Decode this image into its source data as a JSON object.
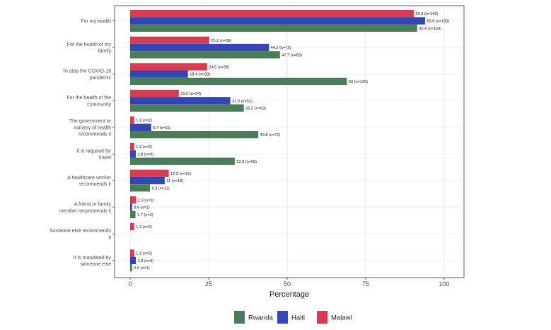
{
  "chart_data": {
    "type": "bar",
    "orientation": "horizontal",
    "title": "",
    "xlabel": "Percentage",
    "ylabel": "",
    "xlim": [
      0,
      100
    ],
    "xticks": [
      0,
      25,
      50,
      75,
      100
    ],
    "grid": true,
    "legend_position": "bottom",
    "categories": [
      [
        "For my health"
      ],
      [
        "For the health of my",
        "family"
      ],
      [
        "To stop the COVID-19",
        "pandemic"
      ],
      [
        "For the health of the",
        "community"
      ],
      [
        "The government or",
        "ministry of health",
        "recommends it"
      ],
      [
        "It is required for",
        "travel"
      ],
      [
        "A healthcare worker",
        "recommends it"
      ],
      [
        "A friend or family",
        "member recommends it"
      ],
      [
        "Someone else recommends",
        "it"
      ],
      [
        "It is mandated by",
        "someone else"
      ]
    ],
    "series": [
      {
        "name": "Rwanda",
        "color": "#4a7c59",
        "values": [
          91.4,
          47.7,
          69,
          36.2,
          40.8,
          33.3,
          6.3,
          1.7,
          null,
          0.6
        ],
        "labels": [
          "91.4 (n=159)",
          "47.7 (n=83)",
          "69 (n=120)",
          "36.2 (n=63)",
          "40.8 (n=71)",
          "33.3 (n=58)",
          "6.3 (n=11)",
          "1.7 (n=3)",
          null,
          "0.6 (n=1)"
        ]
      },
      {
        "name": "Haiti",
        "color": "#3446b4",
        "values": [
          93.9,
          44.2,
          18.4,
          31.9,
          6.7,
          1.8,
          11,
          0.6,
          null,
          1.8
        ],
        "labels": [
          "93.9 (n=153)",
          "44.2 (n=72)",
          "18.4 (n=30)",
          "31.9 (n=52)",
          "6.7 (n=11)",
          "1.8 (n=3)",
          "11 (n=18)",
          "0.6 (n=1)",
          null,
          "1.8 (n=3)"
        ]
      },
      {
        "name": "Malawi",
        "color": "#d63c52",
        "values": [
          90.3,
          25.2,
          24.5,
          15.5,
          1.3,
          1.3,
          12.3,
          1.9,
          1.3,
          1.3
        ],
        "labels": [
          "90.3 (n=140)",
          "25.2 (n=39)",
          "24.5 (n=38)",
          "15.5 (n=24)",
          "1.3 (n=2)",
          "1.3 (n=2)",
          "12.3 (n=19)",
          "1.9 (n=3)",
          "1.3 (n=2)",
          "1.3 (n=2)"
        ]
      }
    ],
    "legend_order": [
      "Rwanda",
      "Haiti",
      "Malawi"
    ]
  }
}
